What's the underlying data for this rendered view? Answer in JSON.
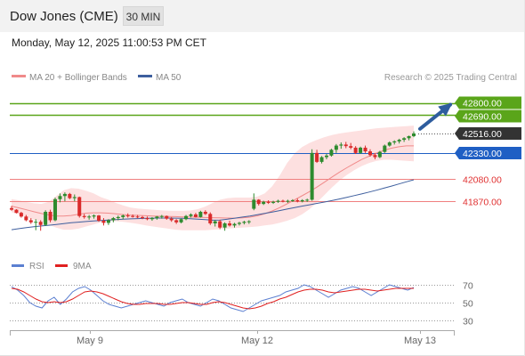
{
  "header": {
    "instrument": "Dow Jones (CME)",
    "timeframe": "30 MIN",
    "datetime": "Monday, May 12, 2025 11:00:53 PM CET"
  },
  "legend": {
    "ma20": "MA 20 + Bollinger Bands",
    "ma50": "MA 50",
    "credit": "Research © 2025 Trading Central",
    "rsi": "RSI",
    "rsi_ma": "9MA"
  },
  "colors": {
    "bull": "#2e8b2e",
    "bear": "#d92b2b",
    "band_fill": "#fde0e0",
    "ma20": "#f08a8a",
    "ma50": "#3e5f9e",
    "resistance": "#5aa51a",
    "support": "#f08080",
    "pivot": "#1f5fc4",
    "current": "#333333",
    "arrow": "#2e5d9e",
    "rsi_line": "#5b7fd1",
    "rsi_ma": "#e02020"
  },
  "chart_data": [
    {
      "type": "candlestick",
      "price_range": [
        41500,
        42880
      ],
      "x_labels": [
        "May 9",
        "May 12",
        "May 13"
      ],
      "levels": [
        {
          "value": 42800,
          "label": "42800.00",
          "kind": "resistance"
        },
        {
          "value": 42690,
          "label": "42690.00",
          "kind": "resistance"
        },
        {
          "value": 42516,
          "label": "42516.00",
          "kind": "current"
        },
        {
          "value": 42330,
          "label": "42330.00",
          "kind": "pivot"
        },
        {
          "value": 42080,
          "label": "42080.00",
          "kind": "support"
        },
        {
          "value": 41870,
          "label": "41870.00",
          "kind": "support"
        }
      ],
      "candles": [
        [
          41806,
          41826,
          41781,
          41791
        ],
        [
          41791,
          41796,
          41756,
          41761
        ],
        [
          41761,
          41771,
          41716,
          41726
        ],
        [
          41726,
          41741,
          41681,
          41691
        ],
        [
          41691,
          41711,
          41656,
          41671
        ],
        [
          41671,
          41701,
          41596,
          41676
        ],
        [
          41676,
          41691,
          41591,
          41646
        ],
        [
          41646,
          41786,
          41636,
          41771
        ],
        [
          41771,
          41791,
          41671,
          41691
        ],
        [
          41691,
          41906,
          41681,
          41891
        ],
        [
          41891,
          41946,
          41861,
          41921
        ],
        [
          41921,
          41956,
          41871,
          41941
        ],
        [
          41941,
          41951,
          41891,
          41901
        ],
        [
          41901,
          41936,
          41871,
          41911
        ],
        [
          41911,
          41916,
          41716,
          41731
        ],
        [
          41731,
          41751,
          41706,
          41721
        ],
        [
          41721,
          41741,
          41696,
          41726
        ],
        [
          41726,
          41746,
          41706,
          41736
        ],
        [
          41736,
          41741,
          41676,
          41686
        ],
        [
          41686,
          41711,
          41641,
          41666
        ],
        [
          41666,
          41701,
          41646,
          41691
        ],
        [
          41691,
          41721,
          41671,
          41711
        ],
        [
          41711,
          41736,
          41691,
          41721
        ],
        [
          41721,
          41746,
          41701,
          41736
        ],
        [
          41736,
          41756,
          41716,
          41731
        ],
        [
          41731,
          41746,
          41716,
          41726
        ],
        [
          41726,
          41741,
          41711,
          41721
        ],
        [
          41721,
          41731,
          41701,
          41711
        ],
        [
          41711,
          41726,
          41691,
          41701
        ],
        [
          41701,
          41721,
          41686,
          41711
        ],
        [
          41711,
          41731,
          41696,
          41726
        ],
        [
          41726,
          41741,
          41706,
          41731
        ],
        [
          41731,
          41736,
          41696,
          41706
        ],
        [
          41706,
          41721,
          41676,
          41691
        ],
        [
          41691,
          41701,
          41656,
          41671
        ],
        [
          41671,
          41706,
          41661,
          41701
        ],
        [
          41701,
          41741,
          41691,
          41731
        ],
        [
          41731,
          41756,
          41716,
          41746
        ],
        [
          41746,
          41761,
          41716,
          41721
        ],
        [
          41721,
          41781,
          41716,
          41771
        ],
        [
          41771,
          41786,
          41741,
          41751
        ],
        [
          41751,
          41766,
          41646,
          41661
        ],
        [
          41661,
          41691,
          41631,
          41681
        ],
        [
          41681,
          41696,
          41606,
          41621
        ],
        [
          41621,
          41671,
          41591,
          41661
        ],
        [
          41661,
          41686,
          41631,
          41641
        ],
        [
          41641,
          41666,
          41621,
          41656
        ],
        [
          41656,
          41676,
          41641,
          41666
        ],
        [
          41666,
          41686,
          41651,
          41676
        ],
        [
          41676,
          41691,
          41656,
          41681
        ],
        [
          41800,
          41946,
          41786,
          41886
        ],
        [
          41886,
          41891,
          41831,
          41846
        ],
        [
          41846,
          41876,
          41836,
          41866
        ],
        [
          41866,
          41881,
          41846,
          41856
        ],
        [
          41856,
          41876,
          41846,
          41866
        ],
        [
          41866,
          41886,
          41856,
          41876
        ],
        [
          41876,
          41886,
          41861,
          41871
        ],
        [
          41871,
          41886,
          41856,
          41876
        ],
        [
          41876,
          41891,
          41866,
          41881
        ],
        [
          41881,
          41896,
          41861,
          41871
        ],
        [
          41871,
          41891,
          41861,
          41881
        ],
        [
          41881,
          41896,
          41866,
          41886
        ],
        [
          41886,
          42366,
          41876,
          42331
        ],
        [
          42331,
          42361,
          42236,
          42246
        ],
        [
          42246,
          42301,
          42231,
          42291
        ],
        [
          42291,
          42321,
          42271,
          42306
        ],
        [
          42306,
          42371,
          42296,
          42361
        ],
        [
          42361,
          42416,
          42331,
          42401
        ],
        [
          42401,
          42431,
          42371,
          42411
        ],
        [
          42411,
          42436,
          42376,
          42396
        ],
        [
          42396,
          42426,
          42366,
          42381
        ],
        [
          42381,
          42396,
          42321,
          42331
        ],
        [
          42331,
          42391,
          42321,
          42381
        ],
        [
          42381,
          42401,
          42331,
          42346
        ],
        [
          42346,
          42366,
          42296,
          42311
        ],
        [
          42311,
          42331,
          42271,
          42291
        ],
        [
          42291,
          42351,
          42281,
          42341
        ],
        [
          42341,
          42411,
          42331,
          42401
        ],
        [
          42401,
          42441,
          42391,
          42431
        ],
        [
          42431,
          42451,
          42411,
          42441
        ],
        [
          42441,
          42466,
          42421,
          42456
        ],
        [
          42456,
          42481,
          42436,
          42471
        ],
        [
          42471,
          42496,
          42451,
          42491
        ],
        [
          42491,
          42536,
          42481,
          42516
        ]
      ],
      "ma20": [
        41825,
        41808,
        41790,
        41772,
        41755,
        41741,
        41731,
        41731,
        41736,
        41748,
        41758,
        41762,
        41762,
        41758,
        41752,
        41745,
        41740,
        41737,
        41734,
        41731,
        41729,
        41727,
        41725,
        41723,
        41721,
        41719,
        41717,
        41715,
        41713,
        41712,
        41711,
        41714,
        41720,
        41733,
        41753,
        41779,
        41811,
        41847,
        41885,
        41923,
        41963,
        42006,
        42053,
        42100,
        42147,
        42190,
        42230,
        42269,
        42300,
        42330,
        42356,
        42376,
        42390,
        42398,
        42398
      ],
      "band_upper": [
        41891,
        41880,
        41864,
        41852,
        41846,
        41866,
        41921,
        41976,
        41996,
        41991,
        41971,
        41946,
        41911,
        41886,
        41856,
        41831,
        41811,
        41801,
        41796,
        41791,
        41786,
        41782,
        41780,
        41780,
        41784,
        41796,
        41821,
        41856,
        41886,
        41901,
        41906,
        41906,
        41906,
        41916,
        41946,
        42016,
        42116,
        42236,
        42326,
        42386,
        42426,
        42456,
        42481,
        42501,
        42516,
        42526,
        42536,
        42546,
        42556,
        42566,
        42571,
        42576,
        42581,
        42586,
        42591
      ],
      "band_lower": [
        41767,
        41746,
        41722,
        41697,
        41676,
        41646,
        41621,
        41601,
        41601,
        41611,
        41631,
        41651,
        41671,
        41681,
        41681,
        41676,
        41666,
        41656,
        41641,
        41631,
        41621,
        41611,
        41601,
        41596,
        41596,
        41596,
        41596,
        41601,
        41606,
        41611,
        41616,
        41621,
        41626,
        41631,
        41641,
        41651,
        41666,
        41686,
        41711,
        41746,
        41796,
        41861,
        41931,
        42001,
        42066,
        42121,
        42166,
        42206,
        42236,
        42256,
        42266,
        42266,
        42261,
        42256,
        42251
      ],
      "ma50": [
        41601,
        41611,
        41621,
        41629,
        41636,
        41643,
        41651,
        41659,
        41667,
        41673,
        41679,
        41684,
        41689,
        41693,
        41697,
        41701,
        41704,
        41707,
        41709,
        41711,
        41712,
        41712,
        41711,
        41709,
        41706,
        41701,
        41696,
        41691,
        41693,
        41701,
        41711,
        41721,
        41731,
        41743,
        41756,
        41769,
        41783,
        41797,
        41811,
        41825,
        41838,
        41851,
        41864,
        41878,
        41893,
        41909,
        41925,
        41941,
        41959,
        41977,
        41996,
        42016,
        42036,
        42056,
        42076
      ]
    },
    {
      "type": "line",
      "name": "RSI",
      "yticks": [
        30,
        50,
        70
      ],
      "ylim": [
        20,
        80
      ],
      "rsi": [
        68,
        64,
        58,
        50,
        46,
        44,
        52,
        56,
        48,
        54,
        62,
        66,
        68,
        64,
        58,
        52,
        48,
        46,
        44,
        46,
        48,
        50,
        52,
        50,
        48,
        46,
        50,
        52,
        54,
        50,
        48,
        46,
        50,
        54,
        52,
        48,
        44,
        42,
        40,
        44,
        48,
        52,
        54,
        56,
        58,
        62,
        64,
        66,
        70,
        68,
        64,
        60,
        56,
        60,
        64,
        66,
        68,
        66,
        62,
        58,
        62,
        66,
        70,
        68,
        66,
        64,
        67
      ],
      "rsi_ma": [
        66,
        65,
        62,
        58,
        54,
        51,
        50,
        51,
        50,
        51,
        54,
        58,
        62,
        63,
        62,
        60,
        57,
        54,
        51,
        49,
        48,
        48,
        49,
        49,
        49,
        48,
        48,
        49,
        50,
        50,
        49,
        48,
        48,
        50,
        51,
        50,
        48,
        46,
        44,
        43,
        44,
        46,
        49,
        51,
        54,
        56,
        59,
        62,
        64,
        65,
        65,
        64,
        62,
        61,
        62,
        63,
        64,
        65,
        65,
        64,
        63,
        64,
        65,
        66,
        66,
        66,
        66
      ]
    }
  ]
}
